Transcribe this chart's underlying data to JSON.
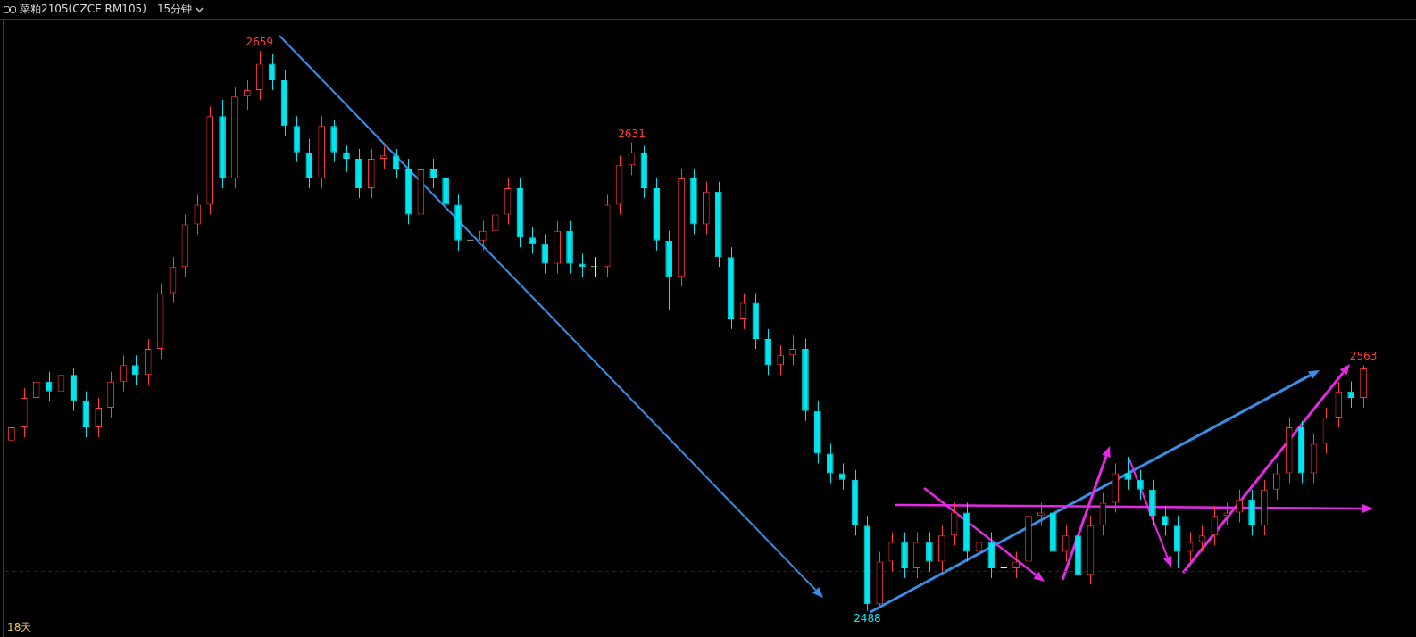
{
  "chart_data": {
    "type": "candlestick",
    "title": "菜粕2105(CZCE RM105)",
    "subtitle": "15分钟",
    "categories": [
      null,
      null,
      null,
      null,
      null,
      null,
      null,
      null,
      null,
      null,
      null,
      null,
      null,
      null,
      null,
      null,
      null,
      null,
      null,
      null,
      null,
      null,
      null,
      null,
      null,
      null,
      null,
      null,
      null,
      null,
      null,
      null,
      null,
      null,
      null,
      null,
      null,
      null,
      null,
      null,
      null,
      null,
      null,
      null,
      null,
      null,
      null,
      null,
      null,
      null,
      null,
      null,
      null,
      null,
      null,
      null,
      null,
      null,
      null,
      null,
      null,
      null,
      null,
      null,
      null,
      null,
      null,
      null,
      null,
      null,
      null,
      null,
      null,
      null,
      null,
      null,
      null,
      null,
      null,
      null,
      null,
      null,
      null,
      null,
      null,
      null,
      null,
      null,
      null,
      null,
      null,
      null,
      null,
      null,
      null,
      null,
      null,
      null,
      null,
      null,
      null,
      null,
      null,
      null,
      null,
      null,
      null,
      null,
      null,
      null
    ],
    "ohlc": [
      [
        2540,
        2547,
        2537,
        2544
      ],
      [
        2544,
        2556,
        2541,
        2553
      ],
      [
        2553,
        2561,
        2550,
        2558
      ],
      [
        2558,
        2561,
        2552,
        2555
      ],
      [
        2555,
        2564,
        2552,
        2560
      ],
      [
        2560,
        2562,
        2549,
        2552
      ],
      [
        2552,
        2555,
        2541,
        2544
      ],
      [
        2544,
        2553,
        2541,
        2550
      ],
      [
        2550,
        2561,
        2547,
        2558
      ],
      [
        2558,
        2566,
        2555,
        2563
      ],
      [
        2563,
        2566,
        2557,
        2560
      ],
      [
        2560,
        2571,
        2557,
        2568
      ],
      [
        2568,
        2588,
        2565,
        2585
      ],
      [
        2585,
        2596,
        2582,
        2593
      ],
      [
        2593,
        2609,
        2590,
        2606
      ],
      [
        2606,
        2615,
        2603,
        2612
      ],
      [
        2612,
        2642,
        2609,
        2639
      ],
      [
        2639,
        2644,
        2617,
        2620
      ],
      [
        2620,
        2648,
        2617,
        2645
      ],
      [
        2645,
        2650,
        2641,
        2647
      ],
      [
        2647,
        2659,
        2644,
        2655
      ],
      [
        2655,
        2658,
        2647,
        2650
      ],
      [
        2650,
        2653,
        2633,
        2636
      ],
      [
        2636,
        2639,
        2625,
        2628
      ],
      [
        2628,
        2632,
        2617,
        2620
      ],
      [
        2620,
        2639,
        2617,
        2636
      ],
      [
        2636,
        2638,
        2625,
        2628
      ],
      [
        2628,
        2630,
        2622,
        2626
      ],
      [
        2626,
        2629,
        2614,
        2617
      ],
      [
        2617,
        2629,
        2614,
        2626
      ],
      [
        2626,
        2630,
        2623,
        2627
      ],
      [
        2627,
        2629,
        2620,
        2623
      ],
      [
        2623,
        2626,
        2606,
        2609
      ],
      [
        2609,
        2626,
        2606,
        2623
      ],
      [
        2623,
        2626,
        2617,
        2620
      ],
      [
        2620,
        2623,
        2609,
        2612
      ],
      [
        2612,
        2615,
        2598,
        2601
      ],
      [
        2601,
        2604,
        2598,
        2601
      ],
      [
        2601,
        2607,
        2598,
        2604
      ],
      [
        2604,
        2612,
        2601,
        2609
      ],
      [
        2609,
        2620,
        2606,
        2617
      ],
      [
        2617,
        2620,
        2599,
        2602
      ],
      [
        2602,
        2605,
        2597,
        2600
      ],
      [
        2600,
        2603,
        2591,
        2594
      ],
      [
        2594,
        2607,
        2591,
        2604
      ],
      [
        2604,
        2607,
        2591,
        2594
      ],
      [
        2594,
        2597,
        2590,
        2593
      ],
      [
        2593,
        2596,
        2590,
        2593
      ],
      [
        2593,
        2615,
        2590,
        2612
      ],
      [
        2612,
        2627,
        2609,
        2624
      ],
      [
        2624,
        2631,
        2621,
        2628
      ],
      [
        2628,
        2630,
        2614,
        2617
      ],
      [
        2617,
        2620,
        2598,
        2601
      ],
      [
        2601,
        2604,
        2580,
        2590
      ],
      [
        2590,
        2623,
        2587,
        2620
      ],
      [
        2620,
        2623,
        2603,
        2606
      ],
      [
        2606,
        2619,
        2603,
        2616
      ],
      [
        2616,
        2619,
        2593,
        2596
      ],
      [
        2596,
        2599,
        2574,
        2577
      ],
      [
        2577,
        2585,
        2574,
        2582
      ],
      [
        2582,
        2585,
        2568,
        2571
      ],
      [
        2571,
        2574,
        2560,
        2563
      ],
      [
        2563,
        2569,
        2560,
        2566
      ],
      [
        2566,
        2572,
        2563,
        2568
      ],
      [
        2568,
        2571,
        2546,
        2549
      ],
      [
        2549,
        2552,
        2533,
        2536
      ],
      [
        2536,
        2539,
        2527,
        2530
      ],
      [
        2530,
        2533,
        2525,
        2528
      ],
      [
        2528,
        2531,
        2511,
        2514
      ],
      [
        2514,
        2517,
        2488,
        2490
      ],
      [
        2490,
        2506,
        2489,
        2503
      ],
      [
        2503,
        2512,
        2500,
        2509
      ],
      [
        2509,
        2512,
        2498,
        2501
      ],
      [
        2501,
        2512,
        2498,
        2509
      ],
      [
        2509,
        2512,
        2500,
        2503
      ],
      [
        2503,
        2514,
        2500,
        2511
      ],
      [
        2511,
        2521,
        2508,
        2518
      ],
      [
        2518,
        2521,
        2503,
        2506
      ],
      [
        2506,
        2512,
        2503,
        2509
      ],
      [
        2509,
        2512,
        2498,
        2501
      ],
      [
        2501,
        2504,
        2498,
        2501
      ],
      [
        2501,
        2506,
        2498,
        2503
      ],
      [
        2503,
        2520,
        2500,
        2517
      ],
      [
        2517,
        2521,
        2514,
        2518
      ],
      [
        2518,
        2521,
        2503,
        2506
      ],
      [
        2506,
        2514,
        2503,
        2511
      ],
      [
        2511,
        2514,
        2496,
        2499
      ],
      [
        2499,
        2517,
        2496,
        2514
      ],
      [
        2514,
        2524,
        2511,
        2521
      ],
      [
        2521,
        2533,
        2518,
        2530
      ],
      [
        2530,
        2535,
        2525,
        2528
      ],
      [
        2528,
        2531,
        2522,
        2525
      ],
      [
        2525,
        2528,
        2514,
        2517
      ],
      [
        2517,
        2520,
        2511,
        2514
      ],
      [
        2514,
        2517,
        2501,
        2506
      ],
      [
        2506,
        2512,
        2503,
        2509
      ],
      [
        2509,
        2514,
        2506,
        2511
      ],
      [
        2511,
        2520,
        2508,
        2517
      ],
      [
        2517,
        2521,
        2514,
        2518
      ],
      [
        2518,
        2525,
        2515,
        2522
      ],
      [
        2522,
        2525,
        2511,
        2514
      ],
      [
        2514,
        2528,
        2511,
        2525
      ],
      [
        2525,
        2533,
        2522,
        2530
      ],
      [
        2530,
        2547,
        2527,
        2544
      ],
      [
        2544,
        2546,
        2527,
        2530
      ],
      [
        2530,
        2542,
        2527,
        2539
      ],
      [
        2539,
        2550,
        2536,
        2547
      ],
      [
        2547,
        2558,
        2544,
        2555
      ],
      [
        2555,
        2558,
        2550,
        2553
      ],
      [
        2553,
        2563,
        2550,
        2562
      ]
    ],
    "yticks": [
      {
        "value": 2500,
        "label": null
      },
      {
        "value": 2600,
        "label": null
      }
    ],
    "grid": "y",
    "annotations": [
      {
        "text": "2659",
        "y": 2659
      },
      {
        "text": "2631",
        "y": 2631
      },
      {
        "text": "2488",
        "y": 2488
      },
      {
        "text": "2563",
        "y": 2563
      },
      "18天"
    ]
  }
}
